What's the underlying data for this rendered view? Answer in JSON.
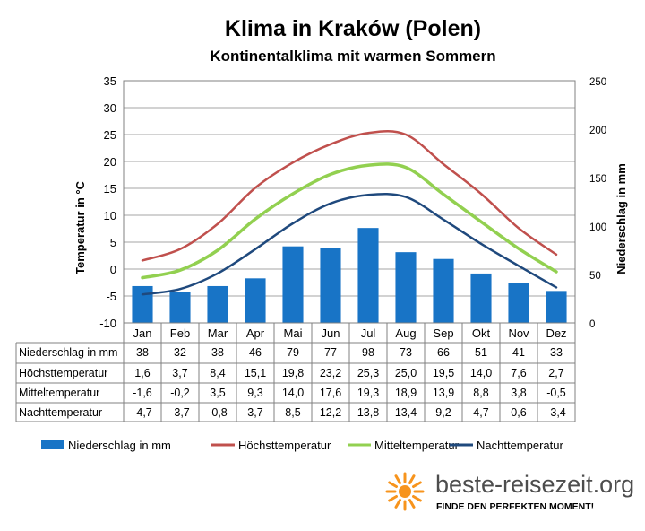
{
  "chart_data": {
    "type": "bar-line-combo",
    "title": "Klima in Kraków (Polen)",
    "subtitle": "Kontinentalklima mit warmen Sommern",
    "ylabel_left": "Temperatur in °C",
    "ylabel_right": "Niederschlag in mm",
    "ylim_left": [
      -10,
      35
    ],
    "ylim_right": [
      0,
      250
    ],
    "yticks_left": [
      "35",
      "30",
      "25",
      "20",
      "15",
      "10",
      "5",
      "0",
      "-5",
      "-10"
    ],
    "yticks_right": [
      "250",
      "200",
      "150",
      "100",
      "50",
      "0"
    ],
    "categories": [
      "Jan",
      "Feb",
      "Mar",
      "Apr",
      "Mai",
      "Jun",
      "Jul",
      "Aug",
      "Sep",
      "Okt",
      "Nov",
      "Dez"
    ],
    "grid": true,
    "legend_placement": "bottom",
    "series": [
      {
        "name": "Niederschlag in mm",
        "kind": "bar",
        "axis": "right",
        "color": "#1874c6",
        "values": [
          38,
          32,
          38,
          46,
          79,
          77,
          98,
          73,
          66,
          51,
          41,
          33
        ],
        "labels": [
          "38",
          "32",
          "38",
          "46",
          "79",
          "77",
          "98",
          "73",
          "66",
          "51",
          "41",
          "33"
        ]
      },
      {
        "name": "Höchsttemperatur",
        "kind": "line",
        "axis": "left",
        "color": "#c0504d",
        "values": [
          1.6,
          3.7,
          8.4,
          15.1,
          19.8,
          23.2,
          25.3,
          25.0,
          19.5,
          14.0,
          7.6,
          2.7
        ],
        "labels": [
          "1,6",
          "3,7",
          "8,4",
          "15,1",
          "19,8",
          "23,2",
          "25,3",
          "25,0",
          "19,5",
          "14,0",
          "7,6",
          "2,7"
        ]
      },
      {
        "name": "Mitteltemperatur",
        "kind": "line",
        "axis": "left",
        "color": "#92d050",
        "values": [
          -1.6,
          -0.2,
          3.5,
          9.3,
          14.0,
          17.6,
          19.3,
          18.9,
          13.9,
          8.8,
          3.8,
          -0.5
        ],
        "labels": [
          "-1,6",
          "-0,2",
          "3,5",
          "9,3",
          "14,0",
          "17,6",
          "19,3",
          "18,9",
          "13,9",
          "8,8",
          "3,8",
          "-0,5"
        ]
      },
      {
        "name": "Nachttemperatur",
        "kind": "line",
        "axis": "left",
        "color": "#1f497d",
        "values": [
          -4.7,
          -3.7,
          -0.8,
          3.7,
          8.5,
          12.2,
          13.8,
          13.4,
          9.2,
          4.7,
          0.6,
          -3.4
        ],
        "labels": [
          "-4,7",
          "-3,7",
          "-0,8",
          "3,7",
          "8,5",
          "12,2",
          "13,8",
          "13,4",
          "9,2",
          "4,7",
          "0,6",
          "-3,4"
        ]
      }
    ]
  },
  "brand": {
    "name": "beste-reisezeit.org",
    "tagline": "FINDE DEN PERFEKTEN MOMENT!",
    "accent": "#f7941d"
  }
}
